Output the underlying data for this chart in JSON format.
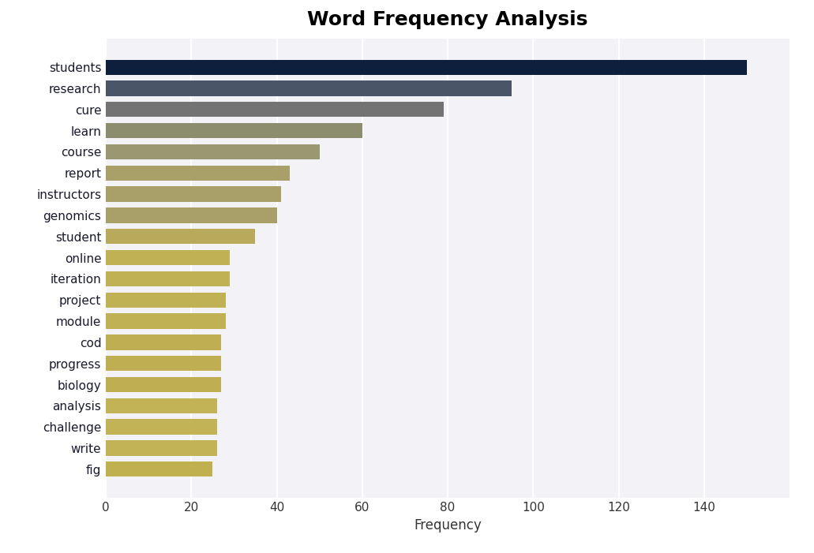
{
  "title": "Word Frequency Analysis",
  "xlabel": "Frequency",
  "categories": [
    "students",
    "research",
    "cure",
    "learn",
    "course",
    "report",
    "instructors",
    "genomics",
    "student",
    "online",
    "iteration",
    "project",
    "module",
    "cod",
    "progress",
    "biology",
    "analysis",
    "challenge",
    "write",
    "fig"
  ],
  "values": [
    150,
    95,
    79,
    60,
    50,
    43,
    41,
    40,
    35,
    29,
    29,
    28,
    28,
    27,
    27,
    27,
    26,
    26,
    26,
    25
  ],
  "colors": [
    "#0d1f3c",
    "#4a5568",
    "#737373",
    "#8c8c6e",
    "#9a9870",
    "#a8a068",
    "#a8a068",
    "#a8a068",
    "#b8aa5a",
    "#c0b254",
    "#c0b254",
    "#c0b254",
    "#c0b254",
    "#bfaf52",
    "#bfaf52",
    "#bfaf52",
    "#c2b356",
    "#c2b356",
    "#c2b356",
    "#c0b050"
  ],
  "figure_bg": "#ffffff",
  "axes_bg": "#f2f2f7",
  "title_fontsize": 18,
  "xlabel_fontsize": 12,
  "tick_fontsize": 11,
  "bar_height": 0.72,
  "xlim": [
    0,
    160
  ],
  "xticks": [
    0,
    20,
    40,
    60,
    80,
    100,
    120,
    140
  ]
}
